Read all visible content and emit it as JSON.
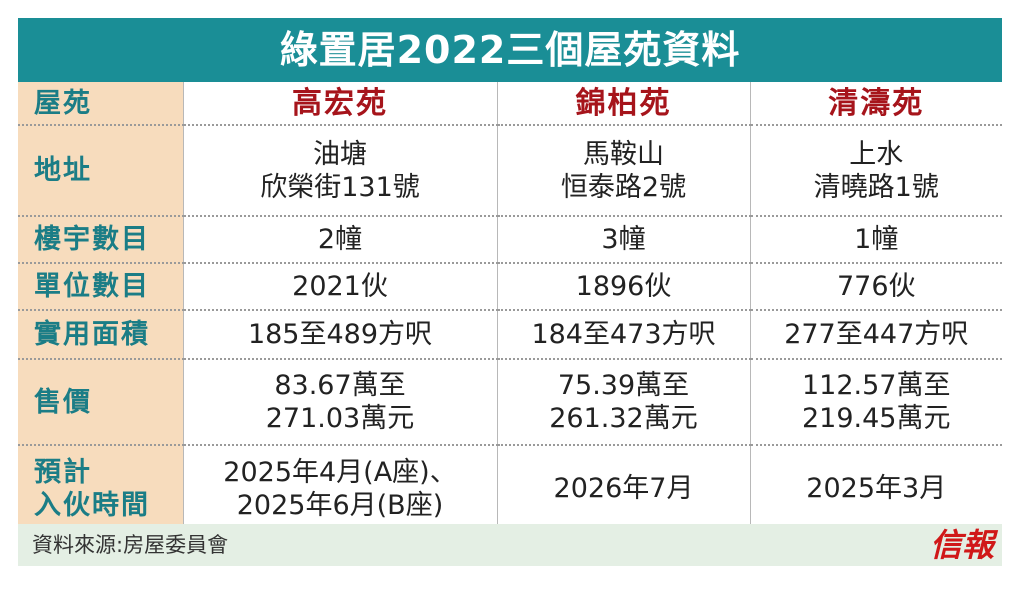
{
  "title": "綠置居2022三個屋苑資料",
  "header": {
    "label": "屋苑",
    "estates": [
      "高宏苑",
      "錦柏苑",
      "清濤苑"
    ]
  },
  "rows": {
    "address": {
      "label": "地址",
      "values": [
        [
          "油塘",
          "欣榮街131號"
        ],
        [
          "馬鞍山",
          "恒泰路2號"
        ],
        [
          "上水",
          "清曉路1號"
        ]
      ]
    },
    "blocks": {
      "label": "樓宇數目",
      "values": [
        "2幢",
        "3幢",
        "1幢"
      ]
    },
    "units": {
      "label": "單位數目",
      "values": [
        "2021伙",
        "1896伙",
        "776伙"
      ]
    },
    "area": {
      "label": "實用面積",
      "values": [
        "185至489方呎",
        "184至473方呎",
        "277至447方呎"
      ]
    },
    "price": {
      "label": "售價",
      "values": [
        [
          "83.67萬至",
          "271.03萬元"
        ],
        [
          "75.39萬至",
          "261.32萬元"
        ],
        [
          "112.57萬至",
          "219.45萬元"
        ]
      ]
    },
    "completion": {
      "label": [
        "預計",
        "入伙時間"
      ],
      "values": [
        [
          "2025年4月(A座)、",
          "2025年6月(B座)"
        ],
        [
          "2026年7月"
        ],
        [
          "2025年3月"
        ]
      ]
    }
  },
  "footer": {
    "source": "資料來源:房屋委員會",
    "logo": "信報"
  },
  "colors": {
    "title_bg": "#1a8e96",
    "label_bg": "#f7dcbd",
    "label_text": "#1b7d86",
    "estate_text": "#a6141b",
    "footer_bg": "#e4efe4",
    "logo": "#d01818"
  }
}
